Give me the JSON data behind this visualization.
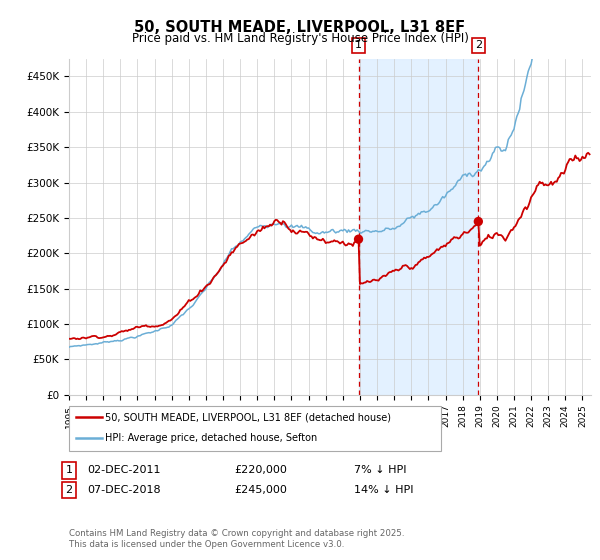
{
  "title": "50, SOUTH MEADE, LIVERPOOL, L31 8EF",
  "subtitle": "Price paid vs. HM Land Registry's House Price Index (HPI)",
  "legend_label_red": "50, SOUTH MEADE, LIVERPOOL, L31 8EF (detached house)",
  "legend_label_blue": "HPI: Average price, detached house, Sefton",
  "annotation1_date": "02-DEC-2011",
  "annotation1_price": "£220,000",
  "annotation1_pct": "7% ↓ HPI",
  "annotation2_date": "07-DEC-2018",
  "annotation2_price": "£245,000",
  "annotation2_pct": "14% ↓ HPI",
  "footer": "Contains HM Land Registry data © Crown copyright and database right 2025.\nThis data is licensed under the Open Government Licence v3.0.",
  "ylim": [
    0,
    475000
  ],
  "yticks": [
    0,
    50000,
    100000,
    150000,
    200000,
    250000,
    300000,
    350000,
    400000,
    450000
  ],
  "ytick_labels": [
    "£0",
    "£50K",
    "£100K",
    "£150K",
    "£200K",
    "£250K",
    "£300K",
    "£350K",
    "£400K",
    "£450K"
  ],
  "hpi_color": "#6baed6",
  "price_color": "#cc0000",
  "vline_color": "#cc0000",
  "shade_color": "#ddeeff",
  "annotation_box_color": "#cc0000",
  "grid_color": "#cccccc",
  "bg_color": "#ffffff",
  "sale1_year": 2011.917,
  "sale1_price": 220000,
  "sale2_year": 2018.917,
  "sale2_price": 245000,
  "xstart": 1995.0,
  "xend": 2025.5
}
